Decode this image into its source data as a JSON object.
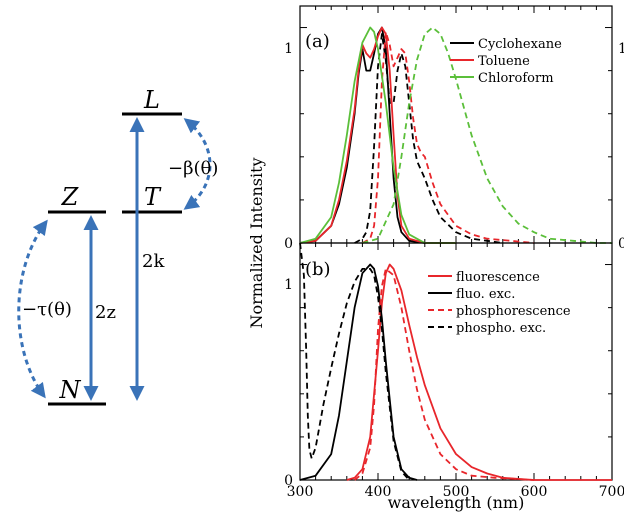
{
  "colors": {
    "black": "#000000",
    "red": "#e8262b",
    "green": "#5bbf3a",
    "blue": "#3a73b8"
  },
  "energy_diagram": {
    "levels": {
      "L": "L",
      "T": "T",
      "Z": "Z",
      "N": "N"
    },
    "transitions": {
      "beta": "−β(θ)",
      "tau": "−τ(θ)",
      "two_z": "2z",
      "two_k": "2k"
    }
  },
  "chart_data": [
    {
      "type": "line",
      "panel_label": "(a)",
      "xlim": [
        300,
        700
      ],
      "ylim": [
        0,
        1.1
      ],
      "ylabel": "Normalized Intensity",
      "yticks_left": [
        "0",
        "1"
      ],
      "yticks_right": [
        "0",
        "1"
      ],
      "legend_placement": "top-right",
      "legend": [
        "Cyclohexane",
        "Toluene",
        "Chloroform"
      ],
      "series": [
        {
          "name": "Cyclohexane",
          "color": "#000000",
          "style": "solid",
          "x": [
            300,
            320,
            340,
            350,
            360,
            370,
            375,
            380,
            385,
            390,
            395,
            400,
            405,
            410,
            415,
            420,
            425,
            430,
            440,
            460,
            500
          ],
          "y": [
            0,
            0.01,
            0.08,
            0.18,
            0.35,
            0.6,
            0.78,
            0.9,
            0.8,
            0.8,
            0.88,
            0.97,
            1.0,
            0.9,
            0.6,
            0.3,
            0.12,
            0.05,
            0.01,
            0,
            0
          ]
        },
        {
          "name": "Cyclohexane",
          "color": "#000000",
          "style": "dashed",
          "x": [
            370,
            380,
            385,
            390,
            395,
            400,
            405,
            410,
            415,
            420,
            425,
            430,
            435,
            440,
            445,
            450,
            455,
            460,
            470,
            480,
            500,
            520,
            540,
            560
          ],
          "y": [
            0,
            0.02,
            0.05,
            0.15,
            0.45,
            0.82,
            0.97,
            0.85,
            0.65,
            0.65,
            0.8,
            0.88,
            0.82,
            0.65,
            0.48,
            0.38,
            0.34,
            0.3,
            0.2,
            0.12,
            0.05,
            0.02,
            0.01,
            0
          ]
        },
        {
          "name": "Toluene",
          "color": "#e8262b",
          "style": "solid",
          "x": [
            300,
            320,
            340,
            350,
            360,
            370,
            375,
            380,
            385,
            390,
            395,
            400,
            405,
            410,
            415,
            420,
            425,
            430,
            440,
            460,
            500
          ],
          "y": [
            0,
            0.01,
            0.08,
            0.2,
            0.38,
            0.62,
            0.8,
            0.92,
            0.88,
            0.86,
            0.9,
            0.96,
            1.0,
            0.97,
            0.8,
            0.5,
            0.22,
            0.08,
            0.02,
            0,
            0
          ]
        },
        {
          "name": "Toluene",
          "color": "#e8262b",
          "style": "dashed",
          "x": [
            380,
            390,
            395,
            400,
            405,
            410,
            415,
            420,
            425,
            430,
            435,
            440,
            445,
            450,
            455,
            460,
            470,
            480,
            500,
            520,
            540,
            570,
            600
          ],
          "y": [
            0,
            0.02,
            0.08,
            0.3,
            0.75,
            0.98,
            0.92,
            0.82,
            0.86,
            0.9,
            0.88,
            0.75,
            0.58,
            0.46,
            0.42,
            0.4,
            0.28,
            0.18,
            0.08,
            0.04,
            0.02,
            0.01,
            0
          ]
        },
        {
          "name": "Chloroform",
          "color": "#5bbf3a",
          "style": "solid",
          "x": [
            300,
            320,
            340,
            350,
            360,
            370,
            380,
            390,
            395,
            400,
            410,
            420,
            430,
            440,
            460,
            500
          ],
          "y": [
            0,
            0.02,
            0.12,
            0.28,
            0.5,
            0.75,
            0.93,
            1.0,
            0.98,
            0.9,
            0.65,
            0.35,
            0.13,
            0.04,
            0,
            0
          ]
        },
        {
          "name": "Chloroform",
          "color": "#5bbf3a",
          "style": "dashed",
          "x": [
            380,
            400,
            420,
            430,
            440,
            450,
            460,
            470,
            480,
            490,
            500,
            520,
            540,
            560,
            580,
            600,
            620,
            650,
            680,
            700
          ],
          "y": [
            0,
            0.02,
            0.18,
            0.4,
            0.65,
            0.85,
            0.97,
            1.0,
            0.97,
            0.88,
            0.76,
            0.5,
            0.3,
            0.17,
            0.09,
            0.05,
            0.02,
            0.01,
            0,
            0
          ]
        }
      ]
    },
    {
      "type": "line",
      "panel_label": "(b)",
      "xlim": [
        300,
        700
      ],
      "ylim": [
        0,
        1.1
      ],
      "xlabel": "wavelength (nm)",
      "xticks": [
        "300",
        "400",
        "500",
        "600",
        "700"
      ],
      "yticks_left": [
        "0",
        "1"
      ],
      "legend_placement": "top-right",
      "legend": [
        "fluorescence",
        "fluo. exc.",
        "phosphorescence",
        "phospho. exc."
      ],
      "series": [
        {
          "name": "fluorescence",
          "color": "#e8262b",
          "style": "solid",
          "x": [
            360,
            370,
            380,
            390,
            400,
            405,
            410,
            415,
            420,
            430,
            440,
            450,
            460,
            480,
            500,
            520,
            540,
            560,
            600,
            650,
            700
          ],
          "y": [
            0,
            0.01,
            0.05,
            0.2,
            0.6,
            0.82,
            0.96,
            1.0,
            0.98,
            0.88,
            0.72,
            0.57,
            0.44,
            0.24,
            0.12,
            0.06,
            0.03,
            0.01,
            0,
            0,
            0
          ]
        },
        {
          "name": "fluo. exc.",
          "color": "#000000",
          "style": "solid",
          "x": [
            300,
            320,
            340,
            350,
            360,
            370,
            380,
            390,
            395,
            400,
            405,
            410,
            420,
            430,
            440,
            450
          ],
          "y": [
            0,
            0.02,
            0.12,
            0.3,
            0.55,
            0.8,
            0.96,
            1.0,
            0.98,
            0.9,
            0.75,
            0.55,
            0.2,
            0.05,
            0.01,
            0
          ]
        },
        {
          "name": "phosphorescence",
          "color": "#e8262b",
          "style": "dashed",
          "x": [
            370,
            380,
            390,
            395,
            400,
            405,
            410,
            420,
            430,
            440,
            450,
            460,
            480,
            500,
            520,
            550,
            600
          ],
          "y": [
            0,
            0.03,
            0.15,
            0.35,
            0.7,
            0.9,
            0.98,
            0.95,
            0.8,
            0.6,
            0.42,
            0.28,
            0.12,
            0.05,
            0.02,
            0.01,
            0
          ]
        },
        {
          "name": "phospho. exc.",
          "color": "#000000",
          "style": "dashed",
          "x": [
            300,
            305,
            308,
            310,
            312,
            315,
            320,
            330,
            340,
            350,
            360,
            370,
            380,
            390,
            395,
            400,
            405,
            410,
            420,
            430,
            440
          ],
          "y": [
            1.12,
            0.95,
            0.6,
            0.3,
            0.14,
            0.1,
            0.15,
            0.35,
            0.52,
            0.68,
            0.82,
            0.92,
            0.98,
            0.98,
            0.95,
            0.85,
            0.7,
            0.5,
            0.18,
            0.04,
            0
          ]
        }
      ]
    }
  ]
}
